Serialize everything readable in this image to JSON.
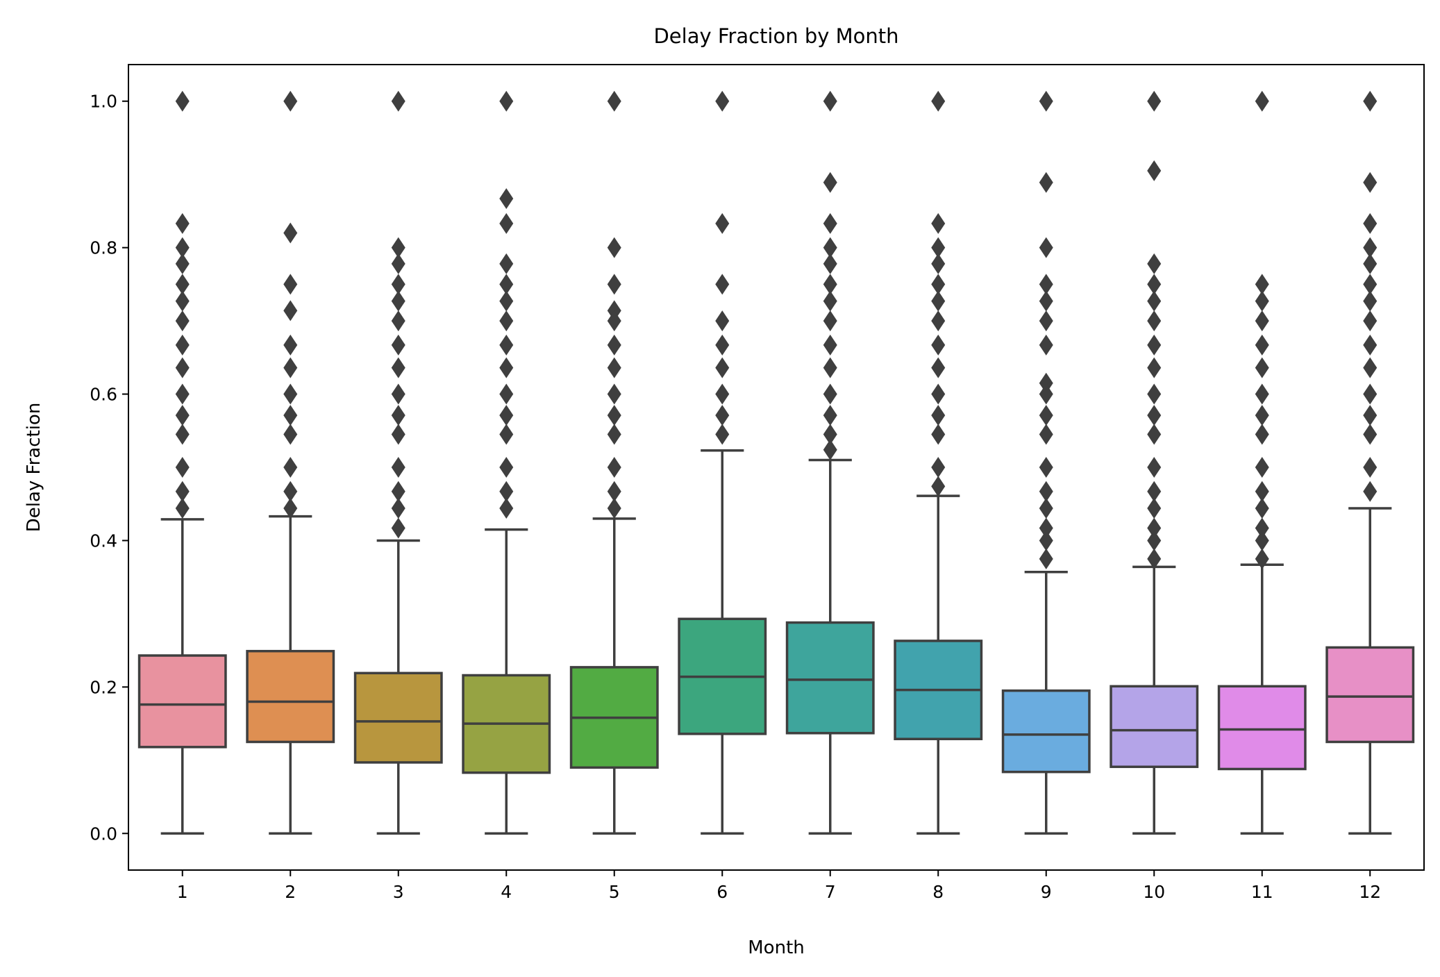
{
  "chart_data": {
    "type": "box",
    "title": "Delay Fraction by Month",
    "xlabel": "Month",
    "ylabel": "Delay Fraction",
    "ylim": [
      -0.05,
      1.05
    ],
    "yticks": [
      0.0,
      0.2,
      0.4,
      0.6,
      0.8,
      1.0
    ],
    "ytick_labels": [
      "0.0",
      "0.2",
      "0.4",
      "0.6",
      "0.8",
      "1.0"
    ],
    "grid": false,
    "legend": "none",
    "categories": [
      "1",
      "2",
      "3",
      "4",
      "5",
      "6",
      "7",
      "8",
      "9",
      "10",
      "11",
      "12"
    ],
    "series": [
      {
        "category": "1",
        "color": "#e8929f",
        "whisker_low": 0.0,
        "q1": 0.118,
        "median": 0.176,
        "q3": 0.243,
        "whisker_high": 0.429,
        "outliers": [
          1.0,
          0.833,
          0.8,
          0.778,
          0.75,
          0.727,
          0.7,
          0.667,
          0.636,
          0.6,
          0.571,
          0.545,
          0.5,
          0.467,
          0.444
        ]
      },
      {
        "category": "2",
        "color": "#de8f52",
        "whisker_low": 0.0,
        "q1": 0.125,
        "median": 0.18,
        "q3": 0.249,
        "whisker_high": 0.433,
        "outliers": [
          1.0,
          0.82,
          0.75,
          0.714,
          0.667,
          0.636,
          0.6,
          0.571,
          0.545,
          0.5,
          0.467,
          0.444
        ]
      },
      {
        "category": "3",
        "color": "#b8963e",
        "whisker_low": 0.0,
        "q1": 0.097,
        "median": 0.153,
        "q3": 0.219,
        "whisker_high": 0.4,
        "outliers": [
          1.0,
          0.8,
          0.778,
          0.75,
          0.727,
          0.7,
          0.667,
          0.636,
          0.6,
          0.571,
          0.545,
          0.5,
          0.467,
          0.444,
          0.417
        ]
      },
      {
        "category": "4",
        "color": "#96a343",
        "whisker_low": 0.0,
        "q1": 0.083,
        "median": 0.15,
        "q3": 0.216,
        "whisker_high": 0.415,
        "outliers": [
          1.0,
          0.867,
          0.833,
          0.778,
          0.75,
          0.727,
          0.7,
          0.667,
          0.636,
          0.6,
          0.571,
          0.545,
          0.5,
          0.467,
          0.444
        ]
      },
      {
        "category": "5",
        "color": "#52ab43",
        "whisker_low": 0.0,
        "q1": 0.09,
        "median": 0.158,
        "q3": 0.227,
        "whisker_high": 0.43,
        "outliers": [
          1.0,
          0.8,
          0.75,
          0.714,
          0.7,
          0.667,
          0.636,
          0.6,
          0.571,
          0.545,
          0.5,
          0.467,
          0.444
        ]
      },
      {
        "category": "6",
        "color": "#3ca67e",
        "whisker_low": 0.0,
        "q1": 0.136,
        "median": 0.214,
        "q3": 0.293,
        "whisker_high": 0.523,
        "outliers": [
          1.0,
          0.833,
          0.75,
          0.7,
          0.667,
          0.636,
          0.6,
          0.571,
          0.545
        ]
      },
      {
        "category": "7",
        "color": "#3ea59c",
        "whisker_low": 0.0,
        "q1": 0.137,
        "median": 0.21,
        "q3": 0.288,
        "whisker_high": 0.51,
        "outliers": [
          1.0,
          0.889,
          0.833,
          0.8,
          0.778,
          0.75,
          0.727,
          0.7,
          0.667,
          0.636,
          0.6,
          0.571,
          0.545,
          0.524
        ]
      },
      {
        "category": "8",
        "color": "#41a3ad",
        "whisker_low": 0.0,
        "q1": 0.129,
        "median": 0.196,
        "q3": 0.263,
        "whisker_high": 0.461,
        "outliers": [
          1.0,
          0.833,
          0.8,
          0.778,
          0.75,
          0.727,
          0.7,
          0.667,
          0.636,
          0.6,
          0.571,
          0.545,
          0.5,
          0.474
        ]
      },
      {
        "category": "9",
        "color": "#6aacdf",
        "whisker_low": 0.0,
        "q1": 0.084,
        "median": 0.135,
        "q3": 0.195,
        "whisker_high": 0.357,
        "outliers": [
          1.0,
          0.889,
          0.8,
          0.75,
          0.727,
          0.7,
          0.667,
          0.615,
          0.6,
          0.571,
          0.545,
          0.5,
          0.467,
          0.444,
          0.417,
          0.4,
          0.375
        ]
      },
      {
        "category": "10",
        "color": "#b4a4e8",
        "whisker_low": 0.0,
        "q1": 0.091,
        "median": 0.141,
        "q3": 0.201,
        "whisker_high": 0.364,
        "outliers": [
          1.0,
          0.905,
          0.778,
          0.75,
          0.727,
          0.7,
          0.667,
          0.636,
          0.6,
          0.571,
          0.545,
          0.5,
          0.467,
          0.444,
          0.417,
          0.4,
          0.375
        ]
      },
      {
        "category": "11",
        "color": "#e08be8",
        "whisker_low": 0.0,
        "q1": 0.088,
        "median": 0.142,
        "q3": 0.201,
        "whisker_high": 0.367,
        "outliers": [
          1.0,
          0.75,
          0.727,
          0.7,
          0.667,
          0.636,
          0.6,
          0.571,
          0.545,
          0.5,
          0.467,
          0.444,
          0.417,
          0.4,
          0.375
        ]
      },
      {
        "category": "12",
        "color": "#e790c6",
        "whisker_low": 0.0,
        "q1": 0.125,
        "median": 0.187,
        "q3": 0.254,
        "whisker_high": 0.444,
        "outliers": [
          1.0,
          0.889,
          0.833,
          0.8,
          0.778,
          0.75,
          0.727,
          0.7,
          0.667,
          0.636,
          0.6,
          0.571,
          0.545,
          0.5,
          0.467
        ]
      }
    ]
  }
}
